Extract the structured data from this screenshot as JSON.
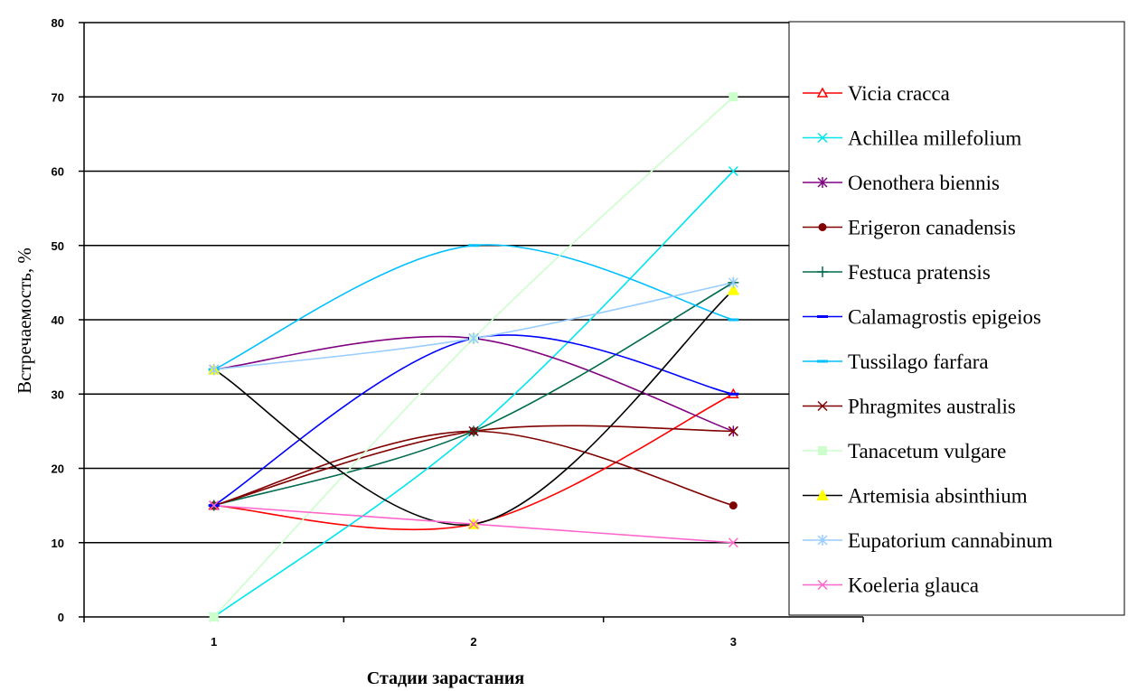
{
  "chart_data": {
    "type": "line",
    "title": "",
    "xlabel": "Стадии зарастания",
    "ylabel": "Встречаемость, %",
    "categories": [
      "1",
      "2",
      "3"
    ],
    "ylim": [
      0,
      80
    ],
    "yticks": [
      "0",
      "10",
      "20",
      "30",
      "40",
      "50",
      "60",
      "70",
      "80"
    ],
    "grid": true,
    "legend_position": "right",
    "series": [
      {
        "name": "Vicia cracca",
        "values": [
          15,
          12.5,
          30
        ],
        "color": "#ff0000",
        "marker": "triangle-open"
      },
      {
        "name": "Achillea millefolium",
        "values": [
          0,
          25,
          60
        ],
        "color": "#00e5ee",
        "marker": "x"
      },
      {
        "name": "Oenothera biennis",
        "values": [
          33.3,
          37.5,
          25
        ],
        "color": "#800080",
        "marker": "star"
      },
      {
        "name": "Erigeron canadensis",
        "values": [
          15,
          25,
          15
        ],
        "color": "#800000",
        "marker": "circle"
      },
      {
        "name": "Festuca pratensis",
        "values": [
          15,
          25,
          45
        ],
        "color": "#006b4f",
        "marker": "plus"
      },
      {
        "name": "Calamagrostis epigeios",
        "values": [
          15,
          37.5,
          30
        ],
        "color": "#0000ff",
        "marker": "dash"
      },
      {
        "name": "Tussilago farfara",
        "values": [
          33.3,
          50,
          40
        ],
        "color": "#00bfff",
        "marker": "dash"
      },
      {
        "name": "Phragmites australis",
        "values": [
          15,
          25,
          25
        ],
        "color": "#800000",
        "marker": "x-light"
      },
      {
        "name": "Tanacetum vulgare",
        "values": [
          0,
          37.5,
          70
        ],
        "color": "#ccffcc",
        "marker": "square"
      },
      {
        "name": "Artemisia absinthium",
        "values": [
          33.3,
          12.5,
          44
        ],
        "color": "#000000",
        "marker": "triangle",
        "marker_color": "#ffff00"
      },
      {
        "name": "Eupatorium cannabinum",
        "values": [
          33.3,
          37.5,
          45
        ],
        "color": "#99ccff",
        "marker": "star"
      },
      {
        "name": "Koeleria glauca",
        "values": [
          15,
          12.5,
          10
        ],
        "color": "#ff66cc",
        "marker": "x"
      }
    ]
  }
}
